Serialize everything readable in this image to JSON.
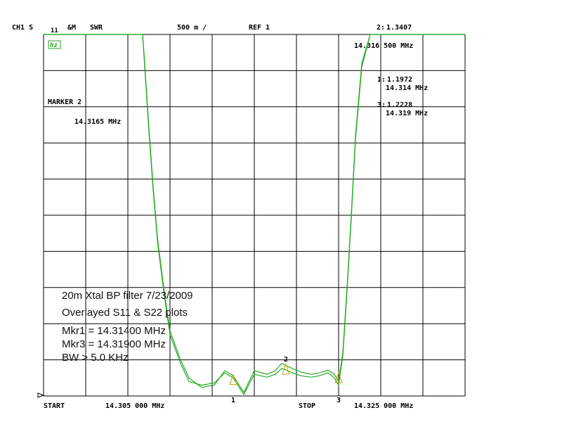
{
  "header": {
    "channel": "CH1 S",
    "param": "11",
    "format_amp": "&M",
    "format": "SWR",
    "scale": "500 m /",
    "ref": "REF 1"
  },
  "icons": {
    "hz_icon": "hz-icon"
  },
  "markers_readout": {
    "active": {
      "label": "2:",
      "value": "1.3407",
      "freq": "14.316 500 MHz"
    },
    "m1": {
      "label": "1:",
      "value": "1.1972",
      "freq": "14.314 MHz"
    },
    "m3": {
      "label": "3:",
      "value": "1.2228",
      "freq": "14.319 MHz"
    }
  },
  "marker_block": {
    "title": "MARKER 2",
    "freq": "14.3165 MHz"
  },
  "annotation": {
    "line1": "20m Xtal BP filter 7/23/2009",
    "line2": "Overlayed S11 & S22 plots",
    "line3": "Mkr1 = 14.31400 MHz",
    "line4": "Mkr3 = 14.31900 MHz",
    "line5": "BW > 5.0 KHz"
  },
  "footer": {
    "start_label": "START",
    "start_value": "14.305 000 MHz",
    "stop_label": "STOP",
    "stop_value": "14.325 000 MHz"
  },
  "chart_data": {
    "type": "line",
    "xunit": "MHz",
    "xlim": [
      14.305,
      14.325
    ],
    "ylim": [
      1,
      6
    ],
    "grid": true,
    "trace_color": "#22aa22",
    "marker_color": "#c8a000",
    "series": [
      {
        "x": [
          14.305,
          14.3097,
          14.3098,
          14.31,
          14.3102,
          14.3104,
          14.3107,
          14.311,
          14.3115,
          14.3119,
          14.3125,
          14.3131,
          14.3136,
          14.314,
          14.3145,
          14.315,
          14.3156,
          14.316,
          14.3163,
          14.3165,
          14.3168,
          14.3172,
          14.3177,
          14.3181,
          14.3185,
          14.3188,
          14.319,
          14.3192,
          14.3194,
          14.3196,
          14.3198,
          14.3201,
          14.3205,
          14.325
        ],
        "y": [
          6.0,
          6.0,
          5.6,
          4.7,
          3.9,
          3.2,
          2.5,
          1.9,
          1.5,
          1.25,
          1.12,
          1.15,
          1.35,
          1.28,
          1.05,
          1.35,
          1.3,
          1.35,
          1.45,
          1.42,
          1.38,
          1.33,
          1.3,
          1.32,
          1.36,
          1.3,
          1.2,
          1.6,
          2.5,
          3.5,
          4.6,
          5.6,
          6.0,
          6.0
        ]
      },
      {
        "x": [
          14.305,
          14.3097,
          14.3098,
          14.31,
          14.3102,
          14.3104,
          14.3107,
          14.311,
          14.3115,
          14.3119,
          14.3125,
          14.3131,
          14.3136,
          14.314,
          14.3145,
          14.315,
          14.3156,
          14.316,
          14.3163,
          14.3165,
          14.3168,
          14.3172,
          14.3177,
          14.3181,
          14.3185,
          14.3188,
          14.319,
          14.3192,
          14.3194,
          14.3196,
          14.3198,
          14.3201,
          14.3205,
          14.325
        ],
        "y": [
          6.0,
          6.0,
          5.55,
          4.65,
          3.85,
          3.15,
          2.45,
          1.85,
          1.45,
          1.2,
          1.15,
          1.18,
          1.32,
          1.25,
          1.02,
          1.3,
          1.26,
          1.3,
          1.38,
          1.36,
          1.32,
          1.28,
          1.26,
          1.28,
          1.32,
          1.25,
          1.15,
          1.55,
          2.45,
          3.45,
          4.55,
          5.55,
          6.0,
          6.0
        ]
      }
    ],
    "markers": [
      {
        "label": "1",
        "x": 14.314,
        "y": 1.1972
      },
      {
        "label": "2",
        "x": 14.3165,
        "y": 1.3407
      },
      {
        "label": "3",
        "x": 14.319,
        "y": 1.2228
      }
    ]
  }
}
